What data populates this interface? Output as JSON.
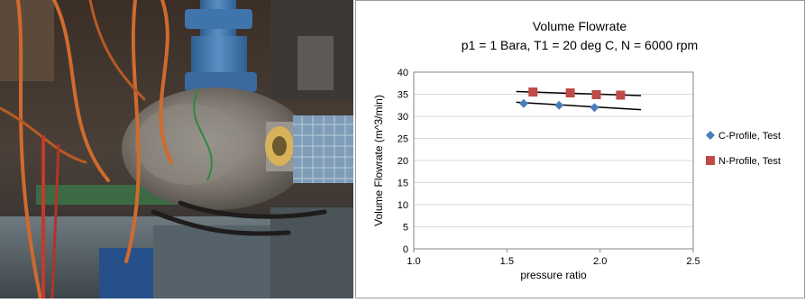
{
  "photo": {
    "subject": "test-rig-photo"
  },
  "chart_data": {
    "type": "scatter",
    "title": "Volume Flowrate",
    "subtitle": "p1 = 1 Bara, T1 = 20 deg C, N = 6000 rpm",
    "xlabel": "pressure ratio",
    "ylabel": "Volume Flowrate (m^3/min)",
    "xlim": [
      1.0,
      2.5
    ],
    "ylim": [
      0,
      40
    ],
    "xticks": [
      "1.0",
      "1.5",
      "2.0",
      "2.5"
    ],
    "yticks": [
      "0",
      "5",
      "10",
      "15",
      "20",
      "25",
      "30",
      "35",
      "40"
    ],
    "grid": "horizontal",
    "legend_position": "right",
    "series": [
      {
        "name": "C-Profile, Test",
        "marker": "diamond",
        "color": "#4a7ebb",
        "x": [
          1.59,
          1.78,
          1.97
        ],
        "y": [
          32.9,
          32.5,
          32.0
        ],
        "trendline": {
          "x": [
            1.55,
            2.22
          ],
          "y": [
            33.2,
            31.5
          ]
        }
      },
      {
        "name": "N-Profile, Test",
        "marker": "square",
        "color": "#be4b48",
        "x": [
          1.64,
          1.84,
          1.98,
          2.11
        ],
        "y": [
          35.5,
          35.3,
          34.9,
          34.8
        ],
        "trendline": {
          "x": [
            1.55,
            2.22
          ],
          "y": [
            35.6,
            34.7
          ]
        }
      }
    ]
  }
}
